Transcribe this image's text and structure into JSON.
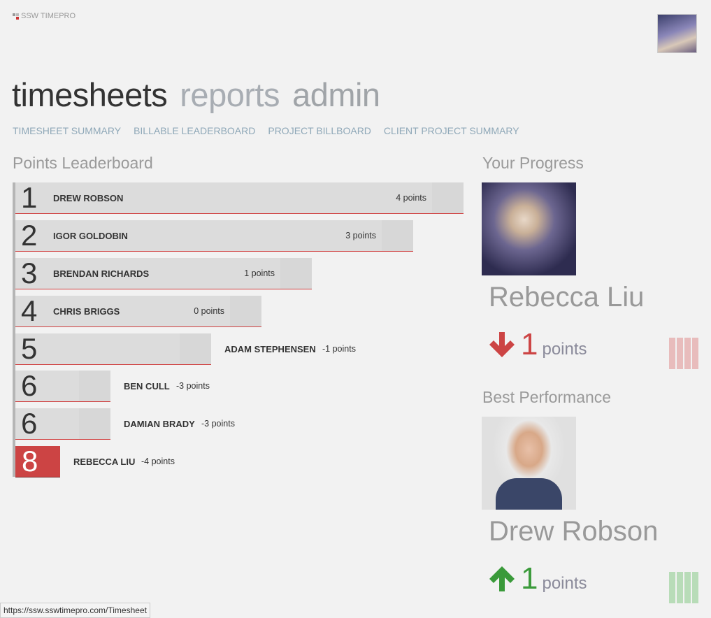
{
  "app": {
    "logo_text": "SSW TIMEPRO"
  },
  "main_nav": [
    {
      "label": "timesheets",
      "active": true
    },
    {
      "label": "reports"
    },
    {
      "label": "admin"
    }
  ],
  "sub_nav": [
    "TIMESHEET SUMMARY",
    "BILLABLE LEADERBOARD",
    "PROJECT BILLBOARD",
    "CLIENT PROJECT SUMMARY"
  ],
  "leaderboard": {
    "title": "Points Leaderboard",
    "rows": [
      {
        "rank": "1",
        "name": "DREW ROBSON",
        "points": "4 points"
      },
      {
        "rank": "2",
        "name": "IGOR GOLDOBIN",
        "points": "3 points"
      },
      {
        "rank": "3",
        "name": "BRENDAN RICHARDS",
        "points": "1 points"
      },
      {
        "rank": "4",
        "name": "CHRIS BRIGGS",
        "points": "0 points"
      },
      {
        "rank": "5",
        "name": "ADAM STEPHENSEN",
        "points": "-1 points"
      },
      {
        "rank": "6",
        "name": "BEN CULL",
        "points": "-3 points"
      },
      {
        "rank": "6",
        "name": "DAMIAN BRADY",
        "points": "-3 points"
      },
      {
        "rank": "8",
        "name": "REBECCA LIU",
        "points": "-4 points",
        "highlight": true
      }
    ]
  },
  "your_progress": {
    "title": "Your Progress",
    "name": "Rebecca Liu",
    "change": "1",
    "unit": "points",
    "trend": "down",
    "color": "#cc4444"
  },
  "best_performance": {
    "title": "Best Performance",
    "name": "Drew Robson",
    "change": "1",
    "unit": "points",
    "trend": "up",
    "color": "#3a9a3a"
  },
  "status_bar": "https://ssw.sswtimepro.com/Timesheet"
}
